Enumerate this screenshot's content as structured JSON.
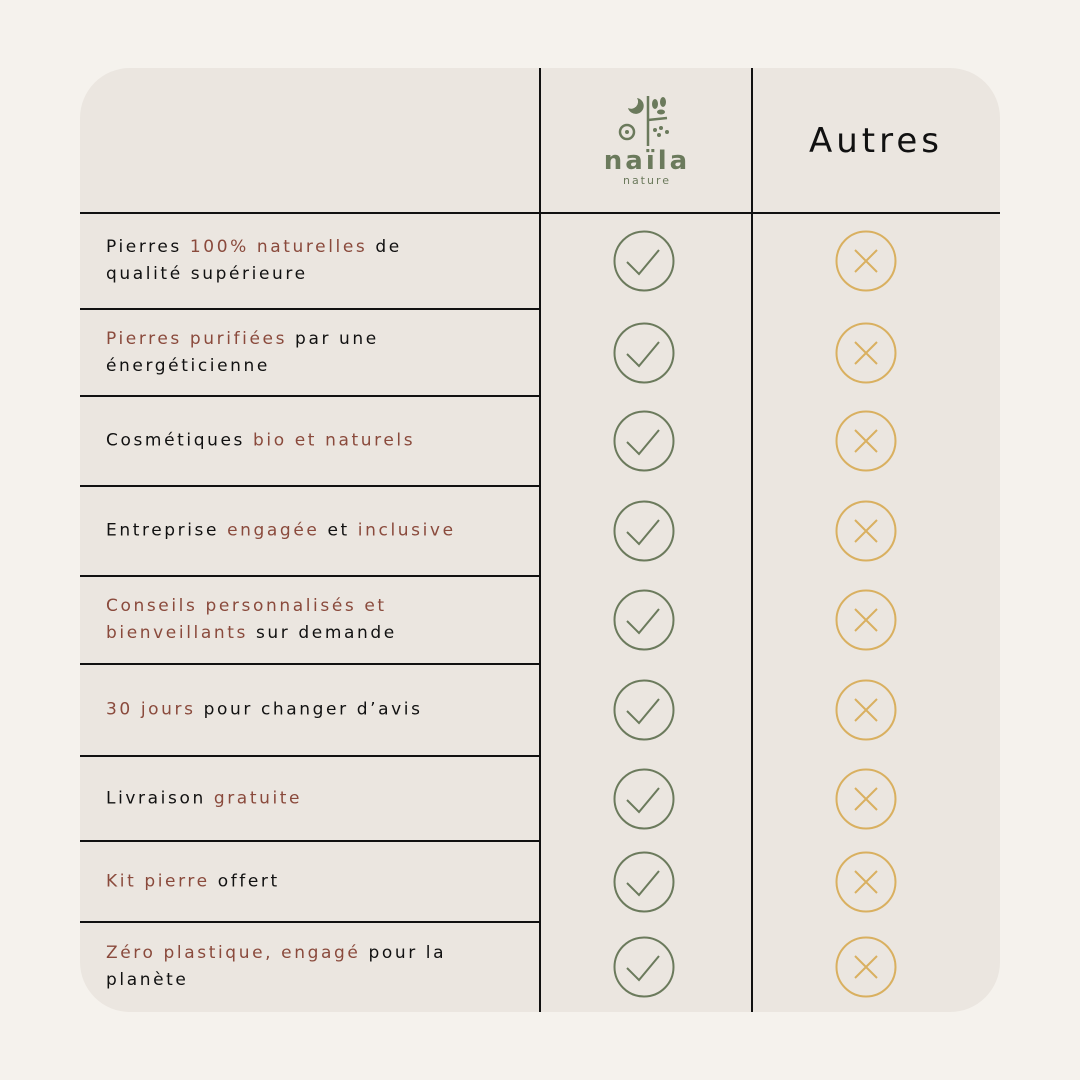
{
  "header": {
    "logo_name": "naïla",
    "logo_sub": "nature",
    "other_label": "Autres"
  },
  "colors": {
    "background": "#f5f2ed",
    "card": "#ebe6e0",
    "highlight": "#8a4a3c",
    "check": "#6b7a5c",
    "cross": "#d9b060"
  },
  "rows": [
    {
      "segments": [
        {
          "text": "Pierres ",
          "hl": false
        },
        {
          "text": "100% naturelles",
          "hl": true
        },
        {
          "text": " de qualité supérieure",
          "hl": false
        }
      ],
      "naila": "check-icon",
      "others": "cross-icon"
    },
    {
      "segments": [
        {
          "text": "Pierres purifiées",
          "hl": true
        },
        {
          "text": " par une énergéticienne",
          "hl": false
        }
      ],
      "naila": "check-icon",
      "others": "cross-icon"
    },
    {
      "segments": [
        {
          "text": "Cosmétiques ",
          "hl": false
        },
        {
          "text": "bio et naturels",
          "hl": true
        }
      ],
      "naila": "check-icon",
      "others": "cross-icon"
    },
    {
      "segments": [
        {
          "text": "Entreprise ",
          "hl": false
        },
        {
          "text": "engagée",
          "hl": true
        },
        {
          "text": " et ",
          "hl": false
        },
        {
          "text": "inclusive",
          "hl": true
        }
      ],
      "naila": "check-icon",
      "others": "cross-icon"
    },
    {
      "segments": [
        {
          "text": "Conseils personnalisés et bienveillants",
          "hl": true
        },
        {
          "text": " sur demande",
          "hl": false
        }
      ],
      "naila": "check-icon",
      "others": "cross-icon"
    },
    {
      "segments": [
        {
          "text": "30 jours",
          "hl": true
        },
        {
          "text": " pour changer d’avis",
          "hl": false
        }
      ],
      "naila": "check-icon",
      "others": "cross-icon"
    },
    {
      "segments": [
        {
          "text": "Livraison ",
          "hl": false
        },
        {
          "text": "gratuite",
          "hl": true
        }
      ],
      "naila": "check-icon",
      "others": "cross-icon"
    },
    {
      "segments": [
        {
          "text": "Kit pierre",
          "hl": true
        },
        {
          "text": " offert",
          "hl": false
        }
      ],
      "naila": "check-icon",
      "others": "cross-icon"
    },
    {
      "segments": [
        {
          "text": "Zéro plastique, engagé",
          "hl": true
        },
        {
          "text": " pour la planète",
          "hl": false
        }
      ],
      "naila": "check-icon",
      "others": "cross-icon"
    }
  ]
}
